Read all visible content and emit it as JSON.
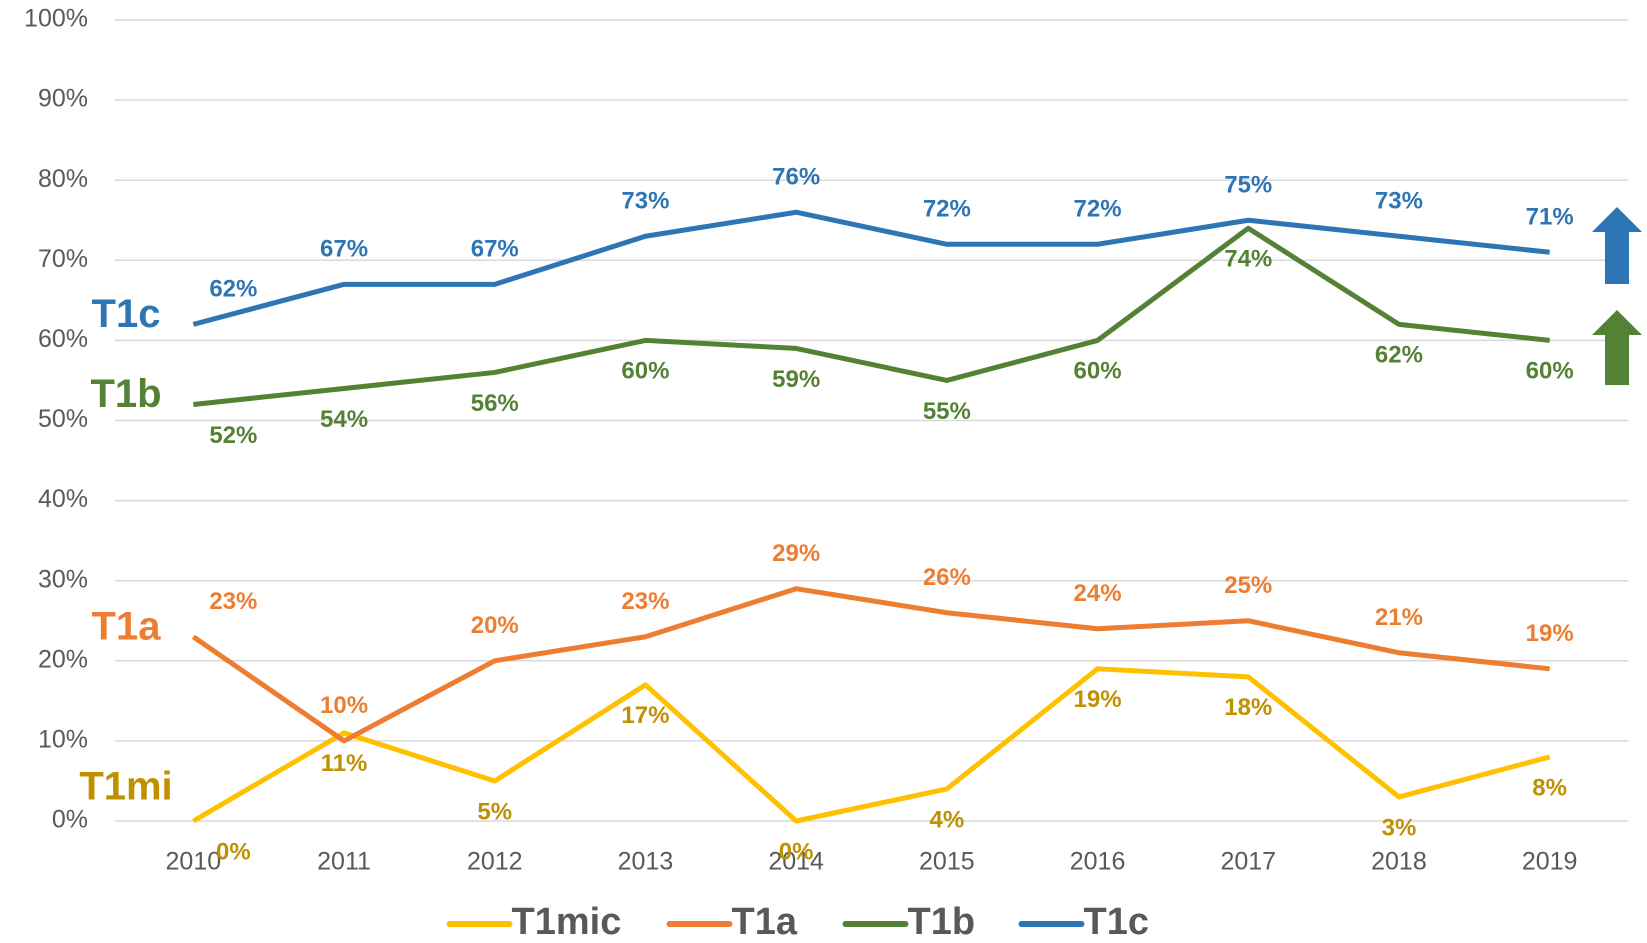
{
  "chart_data": {
    "type": "line",
    "categories": [
      "2010",
      "2011",
      "2012",
      "2013",
      "2014",
      "2015",
      "2016",
      "2017",
      "2018",
      "2019"
    ],
    "series": [
      {
        "name": "T1mic",
        "color": "#ffc000",
        "label_color": "#bf9000",
        "values": [
          0,
          11,
          5,
          17,
          0,
          4,
          19,
          18,
          3,
          8
        ],
        "value_labels": [
          "0%",
          "11%",
          "5%",
          "17%",
          "0%",
          "4%",
          "19%",
          "18%",
          "3%",
          "8%"
        ]
      },
      {
        "name": "T1a",
        "color": "#ed7d31",
        "label_color": "#ed7d31",
        "values": [
          23,
          10,
          20,
          23,
          29,
          26,
          24,
          25,
          21,
          19
        ],
        "value_labels": [
          "23%",
          "10%",
          "20%",
          "23%",
          "29%",
          "26%",
          "24%",
          "25%",
          "21%",
          "19%"
        ]
      },
      {
        "name": "T1b",
        "color": "#548235",
        "label_color": "#548235",
        "values": [
          52,
          54,
          56,
          60,
          59,
          55,
          60,
          74,
          62,
          60
        ],
        "value_labels": [
          "52%",
          "54%",
          "56%",
          "60%",
          "59%",
          "55%",
          "60%",
          "74%",
          "62%",
          "60%"
        ]
      },
      {
        "name": "T1c",
        "color": "#2e75b6",
        "label_color": "#2e75b6",
        "values": [
          62,
          67,
          67,
          73,
          76,
          72,
          72,
          75,
          73,
          71
        ],
        "value_labels": [
          "62%",
          "67%",
          "67%",
          "73%",
          "76%",
          "72%",
          "72%",
          "75%",
          "73%",
          "71%"
        ]
      }
    ],
    "annotations": [
      "T1mi",
      "T1a",
      "T1b",
      "T1c"
    ],
    "ylim": [
      0,
      100
    ],
    "yticks": [
      {
        "value": 0,
        "label": "0%"
      },
      {
        "value": 10,
        "label": "10%"
      },
      {
        "value": 20,
        "label": "20%"
      },
      {
        "value": 30,
        "label": "30%"
      },
      {
        "value": 40,
        "label": "40%"
      },
      {
        "value": 50,
        "label": "50%"
      },
      {
        "value": 60,
        "label": "60%"
      },
      {
        "value": 70,
        "label": "70%"
      },
      {
        "value": 80,
        "label": "80%"
      },
      {
        "value": 90,
        "label": "90%"
      },
      {
        "value": 100,
        "label": "100%"
      }
    ],
    "grid": true,
    "legend": "bottom"
  }
}
